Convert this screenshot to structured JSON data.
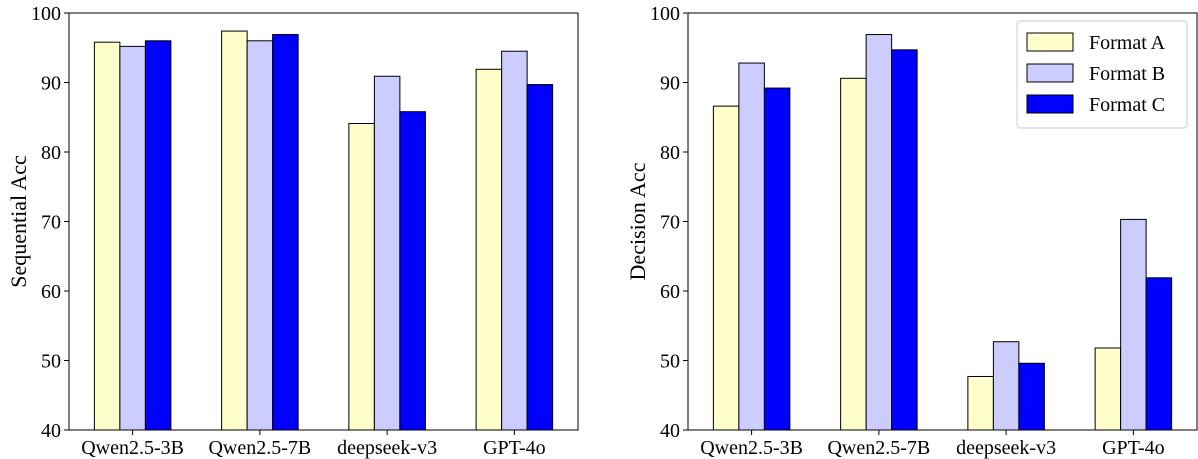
{
  "chart_data": [
    {
      "type": "bar",
      "title": "",
      "xlabel": "",
      "ylabel": "Sequential Acc",
      "ylim": [
        40,
        100
      ],
      "yticks": [
        40,
        50,
        60,
        70,
        80,
        90,
        100
      ],
      "categories": [
        "Qwen2.5-3B",
        "Qwen2.5-7B",
        "deepseek-v3",
        "GPT-4o"
      ],
      "series": [
        {
          "name": "Format A",
          "values": [
            95.8,
            97.4,
            84.1,
            91.9
          ]
        },
        {
          "name": "Format B",
          "values": [
            95.2,
            96.0,
            90.9,
            94.5
          ]
        },
        {
          "name": "Format C",
          "values": [
            96.0,
            96.9,
            85.8,
            89.7
          ]
        }
      ],
      "legend": false,
      "grid": false
    },
    {
      "type": "bar",
      "title": "",
      "xlabel": "",
      "ylabel": "Decision Acc",
      "ylim": [
        40,
        100
      ],
      "yticks": [
        40,
        50,
        60,
        70,
        80,
        90,
        100
      ],
      "categories": [
        "Qwen2.5-3B",
        "Qwen2.5-7B",
        "deepseek-v3",
        "GPT-4o"
      ],
      "series": [
        {
          "name": "Format A",
          "values": [
            86.6,
            90.6,
            47.7,
            51.8
          ]
        },
        {
          "name": "Format B",
          "values": [
            92.8,
            96.9,
            52.7,
            70.3
          ]
        },
        {
          "name": "Format C",
          "values": [
            89.2,
            94.7,
            49.6,
            61.9
          ]
        }
      ],
      "legend": true,
      "legend_position": "top-right",
      "grid": false
    }
  ],
  "colors": {
    "Format A": "#ffffcc",
    "Format B": "#ccccff",
    "Format C": "#0000ff",
    "edge": "#000000"
  }
}
